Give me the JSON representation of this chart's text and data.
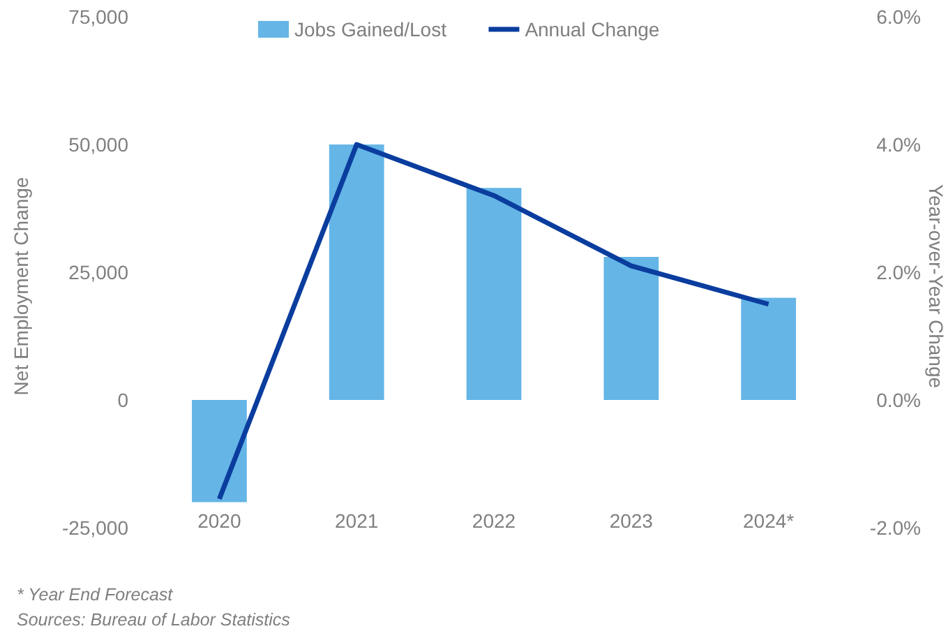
{
  "chart_data": {
    "type": "bar",
    "ylabel": "Net Employment Change",
    "y2label": "Year-over-Year Change",
    "categories": [
      "2020",
      "2021",
      "2022",
      "2023",
      "2024*"
    ],
    "series": [
      {
        "name": "Jobs Gained/Lost",
        "color": "#65b5e6",
        "values": [
          -20000,
          50000,
          41500,
          28000,
          20000
        ]
      },
      {
        "name": "Annual Change",
        "type": "line",
        "axis": "y2",
        "color": "#0a3d9e",
        "values": [
          -1.55,
          4.0,
          3.2,
          2.1,
          1.5
        ]
      }
    ],
    "ylim": [
      -25000,
      75000
    ],
    "yticks": [
      {
        "value": -25000,
        "label": "-25,000"
      },
      {
        "value": 0,
        "label": "0"
      },
      {
        "value": 25000,
        "label": "25,000"
      },
      {
        "value": 50000,
        "label": "50,000"
      },
      {
        "value": 75000,
        "label": "75,000"
      }
    ],
    "y2lim": [
      -2,
      6
    ],
    "y2ticks": [
      {
        "value": -2,
        "label": "-2.0%"
      },
      {
        "value": 0,
        "label": "0.0%"
      },
      {
        "value": 2,
        "label": "2.0%"
      },
      {
        "value": 4,
        "label": "4.0%"
      },
      {
        "value": 6,
        "label": "6.0%"
      }
    ],
    "legend": "top",
    "marker": "none",
    "line_style": "solid",
    "annotations": [
      "* Year End Forecast",
      "Sources: Bureau of Labor Statistics"
    ]
  }
}
